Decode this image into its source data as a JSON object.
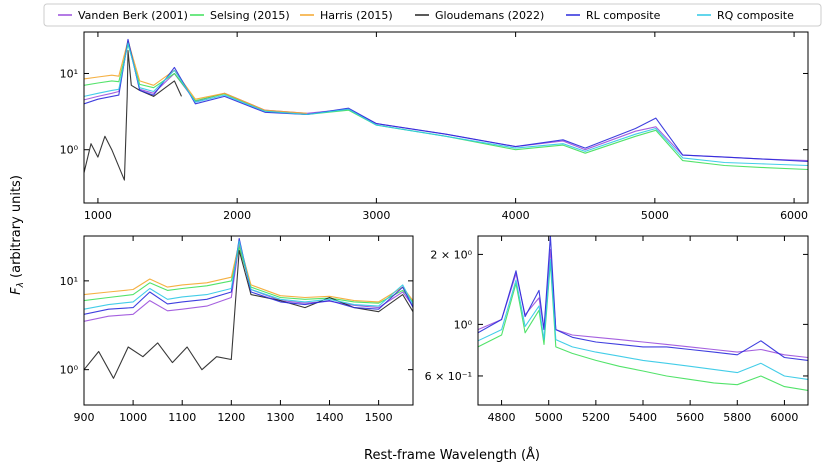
{
  "figure": {
    "ylabel": "F",
    "ylabel_sub": "λ",
    "ylabel_rest": " (arbitrary units)",
    "xlabel": "Rest-frame Wavelength (Å)"
  },
  "legend": {
    "placement": "top",
    "entries": [
      {
        "name": "Vanden Berk (2001)",
        "color": "#9b4fdc"
      },
      {
        "name": "Selsing (2015)",
        "color": "#3fe05a"
      },
      {
        "name": "Harris (2015)",
        "color": "#f4a72d"
      },
      {
        "name": "Gloudemans (2022)",
        "color": "#222222"
      },
      {
        "name": "RL composite",
        "color": "#2a2adc"
      },
      {
        "name": "RQ composite",
        "color": "#2fc8e6"
      }
    ]
  },
  "chart_data": [
    {
      "type": "line",
      "panel": "top",
      "yscale": "log",
      "xlim": [
        900,
        6100
      ],
      "ylim": [
        0.2,
        35
      ],
      "xticks": [
        1000,
        2000,
        3000,
        4000,
        5000,
        6000
      ],
      "xtick_labels": [
        "1000",
        "2000",
        "3000",
        "4000",
        "5000",
        "6000"
      ],
      "yticks": [
        1,
        10
      ],
      "ytick_labels": [
        "10⁰",
        "10¹"
      ],
      "series": [
        {
          "name": "Vanden Berk (2001)",
          "color": "#9b4fdc",
          "x": [
            900,
            1000,
            1100,
            1150,
            1216,
            1300,
            1400,
            1549,
            1700,
            1909,
            2200,
            2500,
            2800,
            3000,
            3500,
            4000,
            4340,
            4500,
            4861,
            5007,
            5200,
            5500,
            5800,
            6100
          ],
          "y": [
            4.5,
            5.0,
            5.5,
            5.8,
            26,
            6.2,
            5.5,
            10,
            4.3,
            5.5,
            3.3,
            3.0,
            3.4,
            2.2,
            1.6,
            1.1,
            1.3,
            1.0,
            1.75,
            2.0,
            0.85,
            0.8,
            0.75,
            0.72
          ]
        },
        {
          "name": "Selsing (2015)",
          "color": "#3fe05a",
          "x": [
            900,
            1000,
            1100,
            1150,
            1216,
            1300,
            1400,
            1549,
            1700,
            1909,
            2200,
            2500,
            2800,
            3000,
            3500,
            4000,
            4340,
            4500,
            4861,
            5007,
            5200,
            5500,
            5800,
            6100
          ],
          "y": [
            7.0,
            7.5,
            8.0,
            7.8,
            24,
            7.2,
            6.5,
            10,
            4.4,
            5.4,
            3.2,
            2.9,
            3.3,
            2.1,
            1.5,
            1.0,
            1.15,
            0.9,
            1.5,
            1.8,
            0.72,
            0.62,
            0.58,
            0.55
          ]
        },
        {
          "name": "Harris (2015)",
          "color": "#f4a72d",
          "x": [
            900,
            1000,
            1100,
            1150,
            1216,
            1300,
            1400,
            1549,
            1700,
            1909,
            2200,
            2500
          ],
          "y": [
            8.5,
            9.0,
            9.5,
            9.2,
            27,
            8.0,
            7.0,
            11,
            4.6,
            5.5,
            3.3,
            3.0
          ]
        },
        {
          "name": "Gloudemans (2022)",
          "color": "#222222",
          "x": [
            900,
            950,
            1000,
            1050,
            1100,
            1150,
            1190,
            1210,
            1216,
            1240,
            1300,
            1400,
            1549,
            1600
          ],
          "y": [
            0.5,
            1.2,
            0.8,
            1.5,
            1.0,
            0.6,
            0.4,
            5,
            20,
            7,
            6,
            5,
            8,
            5
          ]
        },
        {
          "name": "RL composite",
          "color": "#2a2adc",
          "x": [
            900,
            1000,
            1100,
            1150,
            1216,
            1300,
            1400,
            1549,
            1700,
            1909,
            2200,
            2500,
            2800,
            3000,
            3500,
            4000,
            4340,
            4500,
            4861,
            5007,
            5200,
            5500,
            5800,
            6100
          ],
          "y": [
            4.0,
            4.6,
            5.0,
            5.2,
            28,
            6.0,
            5.2,
            12,
            4.0,
            5.0,
            3.1,
            2.9,
            3.5,
            2.2,
            1.6,
            1.1,
            1.35,
            1.05,
            1.9,
            2.6,
            0.85,
            0.8,
            0.75,
            0.7
          ]
        },
        {
          "name": "RQ composite",
          "color": "#2fc8e6",
          "x": [
            900,
            1000,
            1100,
            1150,
            1216,
            1300,
            1400,
            1549,
            1700,
            1909,
            2200,
            2500,
            2800,
            3000,
            3500,
            4000,
            4340,
            4500,
            4861,
            5007,
            5200,
            5500,
            5800,
            6100
          ],
          "y": [
            5.0,
            5.5,
            6.0,
            6.2,
            25,
            6.5,
            5.8,
            11,
            4.2,
            5.2,
            3.2,
            2.9,
            3.4,
            2.1,
            1.5,
            1.05,
            1.2,
            0.95,
            1.6,
            1.9,
            0.78,
            0.68,
            0.65,
            0.62
          ]
        }
      ]
    },
    {
      "type": "line",
      "panel": "bottom-left",
      "yscale": "log",
      "xlim": [
        900,
        1570
      ],
      "ylim": [
        0.4,
        32
      ],
      "xticks": [
        900,
        1000,
        1100,
        1200,
        1300,
        1400,
        1500
      ],
      "xtick_labels": [
        "900",
        "1000",
        "1100",
        "1200",
        "1300",
        "1400",
        "1500"
      ],
      "yticks": [
        1,
        10
      ],
      "ytick_labels": [
        "10⁰",
        "10¹"
      ],
      "series": [
        {
          "name": "Vanden Berk (2001)",
          "color": "#9b4fdc",
          "x": [
            900,
            950,
            1000,
            1034,
            1070,
            1100,
            1150,
            1200,
            1216,
            1240,
            1300,
            1350,
            1400,
            1450,
            1500,
            1549,
            1570
          ],
          "y": [
            3.5,
            4.0,
            4.2,
            6.0,
            4.6,
            4.8,
            5.2,
            6.5,
            26,
            8.0,
            6.0,
            5.6,
            5.9,
            5.3,
            5.0,
            7.5,
            5.2
          ]
        },
        {
          "name": "Selsing (2015)",
          "color": "#3fe05a",
          "x": [
            900,
            950,
            1000,
            1034,
            1070,
            1100,
            1150,
            1200,
            1216,
            1240,
            1300,
            1350,
            1400,
            1450,
            1500,
            1549,
            1570
          ],
          "y": [
            6.0,
            6.5,
            7.0,
            9.5,
            7.8,
            8.2,
            8.8,
            10,
            24,
            8.5,
            6.5,
            6.2,
            6.4,
            5.8,
            5.6,
            7.8,
            5.8
          ]
        },
        {
          "name": "Harris (2015)",
          "color": "#f4a72d",
          "x": [
            900,
            950,
            1000,
            1034,
            1070,
            1100,
            1150,
            1200,
            1216,
            1240,
            1300,
            1350,
            1400,
            1450,
            1500,
            1549,
            1570
          ],
          "y": [
            7.0,
            7.5,
            8.0,
            10.5,
            8.5,
            9.0,
            9.5,
            11,
            27,
            9.0,
            6.8,
            6.5,
            6.7,
            6.0,
            5.8,
            8.5,
            6.0
          ]
        },
        {
          "name": "Gloudemans (2022)",
          "color": "#222222",
          "x": [
            900,
            930,
            960,
            990,
            1020,
            1050,
            1080,
            1110,
            1140,
            1170,
            1200,
            1216,
            1240,
            1300,
            1350,
            1400,
            1450,
            1500,
            1549,
            1570
          ],
          "y": [
            1.0,
            1.6,
            0.8,
            1.8,
            1.4,
            2.0,
            1.2,
            1.8,
            1.0,
            1.4,
            1.3,
            22,
            7.0,
            6.0,
            5.0,
            6.5,
            5.0,
            4.5,
            7.0,
            4.5
          ]
        },
        {
          "name": "RL composite",
          "color": "#2a2adc",
          "x": [
            900,
            950,
            1000,
            1034,
            1070,
            1100,
            1150,
            1200,
            1216,
            1240,
            1300,
            1350,
            1400,
            1450,
            1500,
            1549,
            1570
          ],
          "y": [
            4.2,
            4.8,
            5.0,
            7.5,
            5.5,
            5.8,
            6.2,
            7.5,
            30,
            7.5,
            5.8,
            5.4,
            6.0,
            5.0,
            4.8,
            8.5,
            5.0
          ]
        },
        {
          "name": "RQ composite",
          "color": "#2fc8e6",
          "x": [
            900,
            950,
            1000,
            1034,
            1070,
            1100,
            1150,
            1200,
            1216,
            1240,
            1300,
            1350,
            1400,
            1450,
            1500,
            1549,
            1570
          ],
          "y": [
            4.8,
            5.4,
            5.8,
            8.2,
            6.2,
            6.6,
            7.0,
            8.2,
            28,
            8.0,
            6.2,
            5.8,
            6.2,
            5.4,
            5.2,
            9.0,
            5.4
          ]
        }
      ]
    },
    {
      "type": "line",
      "panel": "bottom-right",
      "yscale": "log",
      "xlim": [
        4700,
        6100
      ],
      "ylim": [
        0.45,
        2.4
      ],
      "xticks": [
        4800,
        5000,
        5200,
        5400,
        5600,
        5800,
        6000
      ],
      "xtick_labels": [
        "4800",
        "5000",
        "5200",
        "5400",
        "5600",
        "5800",
        "6000"
      ],
      "yticks": [
        0.6,
        1,
        2
      ],
      "ytick_labels": [
        "6 × 10⁻¹",
        "10⁰",
        "2 × 10⁰"
      ],
      "series": [
        {
          "name": "Vanden Berk (2001)",
          "color": "#9b4fdc",
          "x": [
            4700,
            4800,
            4861,
            4900,
            4959,
            4980,
            5007,
            5030,
            5100,
            5200,
            5300,
            5400,
            5500,
            5600,
            5700,
            5800,
            5900,
            6000,
            6100
          ],
          "y": [
            0.95,
            1.05,
            1.65,
            1.1,
            1.3,
            0.95,
            2.1,
            0.95,
            0.9,
            0.88,
            0.86,
            0.84,
            0.82,
            0.8,
            0.78,
            0.76,
            0.78,
            0.74,
            0.72
          ]
        },
        {
          "name": "Selsing (2015)",
          "color": "#3fe05a",
          "x": [
            4700,
            4800,
            4861,
            4900,
            4959,
            4980,
            5007,
            5030,
            5100,
            5200,
            5300,
            5400,
            5500,
            5600,
            5700,
            5800,
            5900,
            6000,
            6100
          ],
          "y": [
            0.8,
            0.9,
            1.5,
            0.92,
            1.15,
            0.82,
            1.85,
            0.8,
            0.75,
            0.7,
            0.66,
            0.63,
            0.6,
            0.58,
            0.56,
            0.55,
            0.6,
            0.54,
            0.52
          ]
        },
        {
          "name": "RL composite",
          "color": "#2a2adc",
          "x": [
            4700,
            4800,
            4861,
            4900,
            4959,
            4980,
            5007,
            5030,
            5100,
            5200,
            5300,
            5400,
            5500,
            5600,
            5700,
            5800,
            5900,
            6000,
            6100
          ],
          "y": [
            0.92,
            1.05,
            1.7,
            1.08,
            1.4,
            0.95,
            2.4,
            0.95,
            0.88,
            0.84,
            0.82,
            0.8,
            0.8,
            0.78,
            0.76,
            0.74,
            0.85,
            0.72,
            0.7
          ]
        },
        {
          "name": "RQ composite",
          "color": "#2fc8e6",
          "x": [
            4700,
            4800,
            4861,
            4900,
            4959,
            4980,
            5007,
            5030,
            5100,
            5200,
            5300,
            5400,
            5500,
            5600,
            5700,
            5800,
            5900,
            6000,
            6100
          ],
          "y": [
            0.85,
            0.95,
            1.55,
            0.98,
            1.2,
            0.86,
            1.9,
            0.86,
            0.8,
            0.76,
            0.73,
            0.7,
            0.68,
            0.66,
            0.64,
            0.62,
            0.68,
            0.6,
            0.58
          ]
        }
      ]
    }
  ]
}
